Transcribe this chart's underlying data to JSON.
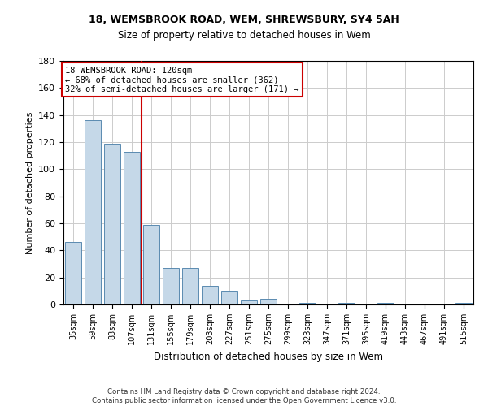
{
  "title1": "18, WEMSBROOK ROAD, WEM, SHREWSBURY, SY4 5AH",
  "title2": "Size of property relative to detached houses in Wem",
  "xlabel": "Distribution of detached houses by size in Wem",
  "ylabel": "Number of detached properties",
  "categories": [
    "35sqm",
    "59sqm",
    "83sqm",
    "107sqm",
    "131sqm",
    "155sqm",
    "179sqm",
    "203sqm",
    "227sqm",
    "251sqm",
    "275sqm",
    "299sqm",
    "323sqm",
    "347sqm",
    "371sqm",
    "395sqm",
    "419sqm",
    "443sqm",
    "467sqm",
    "491sqm",
    "515sqm"
  ],
  "values": [
    46,
    136,
    119,
    113,
    59,
    27,
    27,
    14,
    10,
    3,
    4,
    0,
    1,
    0,
    1,
    0,
    1,
    0,
    0,
    0,
    1
  ],
  "bar_color": "#c5d8e8",
  "bar_edge_color": "#5a8ab0",
  "red_line_x": 3.5,
  "annotation_line1": "18 WEMSBROOK ROAD: 120sqm",
  "annotation_line2": "← 68% of detached houses are smaller (362)",
  "annotation_line3": "32% of semi-detached houses are larger (171) →",
  "annotation_box_color": "#ffffff",
  "annotation_box_edge_color": "#cc0000",
  "red_line_color": "#cc0000",
  "ylim": [
    0,
    180
  ],
  "yticks": [
    0,
    20,
    40,
    60,
    80,
    100,
    120,
    140,
    160,
    180
  ],
  "footer": "Contains HM Land Registry data © Crown copyright and database right 2024.\nContains public sector information licensed under the Open Government Licence v3.0.",
  "background_color": "#ffffff",
  "grid_color": "#cccccc"
}
